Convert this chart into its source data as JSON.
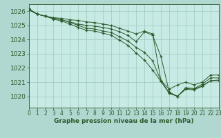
{
  "title": "Graphe pression niveau de la mer (hPa)",
  "xlim": [
    0,
    23
  ],
  "ylim": [
    1019.2,
    1026.5
  ],
  "yticks": [
    1020,
    1021,
    1022,
    1023,
    1024,
    1025,
    1026
  ],
  "xticks": [
    0,
    1,
    2,
    3,
    4,
    5,
    6,
    7,
    8,
    9,
    10,
    11,
    12,
    13,
    14,
    15,
    16,
    17,
    18,
    19,
    20,
    21,
    22,
    23
  ],
  "bg_color": "#b0d8d0",
  "plot_bg_color": "#c8eae4",
  "line_color": "#2d5a2d",
  "marker": "+",
  "lines": [
    [
      1026.2,
      1025.8,
      1025.65,
      1025.55,
      1025.5,
      1025.4,
      1025.35,
      1025.25,
      1025.2,
      1025.1,
      1025.0,
      1024.8,
      1024.6,
      1024.4,
      1024.6,
      1024.4,
      1021.1,
      1020.5,
      1020.8,
      1021.0,
      1020.8,
      1021.0,
      1021.5,
      1021.5
    ],
    [
      1026.1,
      1025.8,
      1025.65,
      1025.5,
      1025.4,
      1025.25,
      1025.1,
      1025.0,
      1024.95,
      1024.85,
      1024.75,
      1024.55,
      1024.3,
      1023.85,
      1024.55,
      1024.3,
      1022.8,
      1020.3,
      1020.0,
      1020.6,
      1020.55,
      1020.85,
      1021.3,
      1021.3
    ],
    [
      1026.1,
      1025.8,
      1025.65,
      1025.5,
      1025.4,
      1025.2,
      1025.0,
      1024.8,
      1024.75,
      1024.6,
      1024.5,
      1024.2,
      1023.9,
      1023.45,
      1023.1,
      1022.5,
      1021.1,
      1020.25,
      1020.0,
      1020.55,
      1020.5,
      1020.75,
      1021.1,
      1021.15
    ],
    [
      1026.15,
      1025.8,
      1025.65,
      1025.45,
      1025.3,
      1025.1,
      1024.85,
      1024.65,
      1024.6,
      1024.45,
      1024.3,
      1023.95,
      1023.6,
      1023.05,
      1022.55,
      1021.85,
      1021.05,
      1020.2,
      1020.0,
      1020.5,
      1020.45,
      1020.7,
      1021.1,
      1021.1
    ]
  ]
}
